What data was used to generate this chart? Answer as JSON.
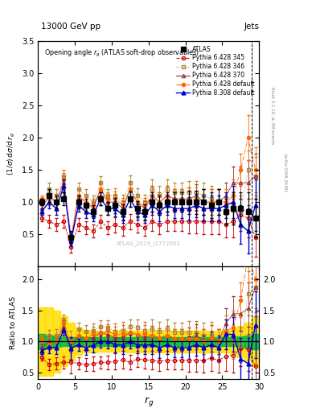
{
  "title_top": "13000 GeV pp",
  "title_right": "Jets",
  "plot_title": "Opening angle $r_g$ (ATLAS soft-drop observables)",
  "ylabel_main": "(1/σ) dσ/d r_g",
  "ylabel_ratio": "Ratio to ATLAS",
  "xlabel": "r_g",
  "watermark": "ATLAS_2019_I1772062",
  "rivet_label": "Rivet 3.1.10, ≥ 3M events",
  "arxiv_label": "[arXiv:1306.3436]",
  "ylim_main": [
    0.0,
    3.5
  ],
  "ylim_ratio": [
    0.4,
    2.2
  ],
  "x_data": [
    0.5,
    1.5,
    2.5,
    3.5,
    4.5,
    5.5,
    6.5,
    7.5,
    8.5,
    9.5,
    10.5,
    11.5,
    12.5,
    13.5,
    14.5,
    15.5,
    16.5,
    17.5,
    18.5,
    19.5,
    20.5,
    21.5,
    22.5,
    23.5,
    24.5,
    25.5,
    26.5,
    27.5,
    28.5,
    29.5
  ],
  "atlas_y": [
    1.0,
    1.1,
    1.0,
    1.05,
    0.45,
    1.0,
    0.95,
    0.85,
    1.05,
    0.9,
    0.95,
    0.85,
    1.05,
    0.9,
    0.85,
    1.0,
    0.95,
    1.0,
    1.0,
    1.0,
    1.0,
    1.0,
    1.0,
    0.95,
    1.0,
    0.85,
    0.9,
    0.9,
    0.85,
    0.75
  ],
  "atlas_yerr": [
    0.05,
    0.1,
    0.1,
    0.1,
    0.1,
    0.1,
    0.1,
    0.1,
    0.1,
    0.1,
    0.12,
    0.12,
    0.12,
    0.12,
    0.12,
    0.15,
    0.15,
    0.15,
    0.15,
    0.15,
    0.18,
    0.18,
    0.2,
    0.2,
    0.2,
    0.2,
    0.25,
    0.25,
    0.3,
    0.3
  ],
  "p6_345_y": [
    0.75,
    0.7,
    0.65,
    0.7,
    0.3,
    0.65,
    0.6,
    0.55,
    0.7,
    0.6,
    0.65,
    0.6,
    0.7,
    0.65,
    0.6,
    0.7,
    0.65,
    0.7,
    0.7,
    0.7,
    0.7,
    0.7,
    0.7,
    0.7,
    0.7,
    0.65,
    0.7,
    0.8,
    0.75,
    0.45
  ],
  "p6_346_y": [
    1.0,
    1.2,
    1.1,
    1.4,
    0.4,
    1.2,
    1.1,
    1.0,
    1.3,
    1.1,
    1.1,
    1.0,
    1.3,
    1.1,
    1.0,
    1.2,
    1.1,
    1.2,
    1.15,
    1.15,
    1.15,
    1.15,
    1.1,
    1.05,
    1.0,
    0.95,
    0.9,
    0.85,
    1.5,
    1.4
  ],
  "p6_370_y": [
    0.9,
    1.1,
    1.0,
    1.3,
    0.4,
    1.1,
    1.0,
    0.9,
    1.2,
    1.0,
    1.0,
    0.9,
    1.2,
    1.0,
    0.9,
    1.1,
    1.0,
    1.1,
    1.05,
    1.05,
    1.05,
    1.1,
    1.0,
    1.0,
    1.0,
    1.1,
    1.3,
    1.3,
    1.3,
    1.4
  ],
  "p6_def_y": [
    1.05,
    1.05,
    1.0,
    1.35,
    0.45,
    1.1,
    1.0,
    0.95,
    1.2,
    1.05,
    1.05,
    0.95,
    1.2,
    1.0,
    0.95,
    1.1,
    1.0,
    1.1,
    1.05,
    1.05,
    1.05,
    1.05,
    1.0,
    1.0,
    1.0,
    1.0,
    1.1,
    1.5,
    2.0,
    1.5
  ],
  "p8_def_y": [
    0.85,
    1.0,
    0.9,
    1.25,
    0.4,
    0.95,
    0.85,
    0.8,
    1.05,
    0.9,
    0.9,
    0.8,
    1.05,
    0.85,
    0.8,
    0.95,
    0.85,
    0.95,
    0.9,
    0.9,
    0.9,
    0.95,
    0.9,
    0.9,
    0.9,
    0.95,
    1.0,
    0.65,
    0.55,
    0.95
  ],
  "p6_345_yerr": [
    0.05,
    0.1,
    0.1,
    0.1,
    0.08,
    0.1,
    0.1,
    0.1,
    0.1,
    0.1,
    0.12,
    0.12,
    0.12,
    0.12,
    0.12,
    0.15,
    0.15,
    0.15,
    0.15,
    0.15,
    0.18,
    0.18,
    0.2,
    0.2,
    0.2,
    0.2,
    0.25,
    0.25,
    0.3,
    0.3
  ],
  "p6_346_yerr": [
    0.05,
    0.1,
    0.1,
    0.1,
    0.08,
    0.1,
    0.1,
    0.1,
    0.1,
    0.1,
    0.12,
    0.12,
    0.12,
    0.12,
    0.12,
    0.15,
    0.15,
    0.15,
    0.15,
    0.15,
    0.18,
    0.18,
    0.2,
    0.2,
    0.2,
    0.2,
    0.25,
    0.25,
    0.3,
    0.3
  ],
  "p6_370_yerr": [
    0.05,
    0.1,
    0.1,
    0.1,
    0.08,
    0.1,
    0.1,
    0.1,
    0.1,
    0.1,
    0.12,
    0.12,
    0.12,
    0.12,
    0.12,
    0.15,
    0.15,
    0.15,
    0.15,
    0.15,
    0.18,
    0.18,
    0.2,
    0.2,
    0.2,
    0.2,
    0.25,
    0.25,
    0.35,
    0.35
  ],
  "p6_def_yerr": [
    0.05,
    0.1,
    0.1,
    0.1,
    0.08,
    0.1,
    0.1,
    0.1,
    0.1,
    0.1,
    0.12,
    0.12,
    0.12,
    0.12,
    0.12,
    0.15,
    0.15,
    0.15,
    0.15,
    0.15,
    0.18,
    0.18,
    0.2,
    0.2,
    0.2,
    0.2,
    0.25,
    0.25,
    0.35,
    0.35
  ],
  "p8_def_yerr": [
    0.05,
    0.1,
    0.1,
    0.1,
    0.08,
    0.1,
    0.1,
    0.1,
    0.1,
    0.1,
    0.12,
    0.12,
    0.12,
    0.12,
    0.12,
    0.15,
    0.15,
    0.15,
    0.15,
    0.15,
    0.18,
    0.18,
    0.2,
    0.2,
    0.2,
    0.2,
    0.25,
    0.3,
    0.35,
    0.4
  ],
  "green_band_x": [
    0,
    1,
    2,
    3,
    4,
    5,
    6,
    7,
    8,
    9,
    10,
    11,
    12,
    13,
    14,
    15,
    16,
    17,
    18,
    19,
    20,
    21,
    22,
    23,
    24,
    25,
    26,
    27,
    28,
    29,
    30
  ],
  "green_band_lo": [
    0.88,
    0.9,
    0.92,
    0.93,
    0.93,
    0.93,
    0.93,
    0.93,
    0.93,
    0.93,
    0.93,
    0.93,
    0.93,
    0.93,
    0.93,
    0.93,
    0.93,
    0.93,
    0.93,
    0.93,
    0.93,
    0.93,
    0.93,
    0.93,
    0.93,
    0.93,
    0.93,
    0.92,
    0.9,
    0.88,
    0.88
  ],
  "green_band_hi": [
    1.12,
    1.1,
    1.08,
    1.07,
    1.07,
    1.07,
    1.07,
    1.07,
    1.07,
    1.07,
    1.07,
    1.07,
    1.07,
    1.07,
    1.07,
    1.07,
    1.07,
    1.07,
    1.07,
    1.07,
    1.07,
    1.07,
    1.07,
    1.07,
    1.07,
    1.07,
    1.07,
    1.08,
    1.1,
    1.12,
    1.12
  ],
  "yellow_band_lo": [
    0.45,
    0.45,
    0.5,
    0.6,
    0.7,
    0.78,
    0.82,
    0.83,
    0.84,
    0.84,
    0.84,
    0.84,
    0.82,
    0.83,
    0.83,
    0.83,
    0.83,
    0.83,
    0.83,
    0.83,
    0.83,
    0.83,
    0.83,
    0.83,
    0.83,
    0.83,
    0.8,
    0.75,
    0.7,
    0.6,
    0.5
  ],
  "yellow_band_hi": [
    1.55,
    1.55,
    1.5,
    1.4,
    1.3,
    1.22,
    1.18,
    1.17,
    1.16,
    1.16,
    1.16,
    1.18,
    1.17,
    1.17,
    1.17,
    1.17,
    1.17,
    1.17,
    1.17,
    1.17,
    1.17,
    1.17,
    1.17,
    1.17,
    1.17,
    1.17,
    1.2,
    1.25,
    1.3,
    1.4,
    1.5
  ],
  "colors": {
    "atlas": "#000000",
    "p6_345": "#cc0000",
    "p6_346": "#aa8833",
    "p6_370": "#993333",
    "p6_def": "#ff6600",
    "p8_def": "#0000cc",
    "green_band": "#00bb44",
    "yellow_band": "#ffdd00"
  },
  "vline_x": 29,
  "xlim": [
    0,
    30
  ],
  "xticks": [
    0,
    5,
    10,
    15,
    20,
    25,
    30
  ]
}
